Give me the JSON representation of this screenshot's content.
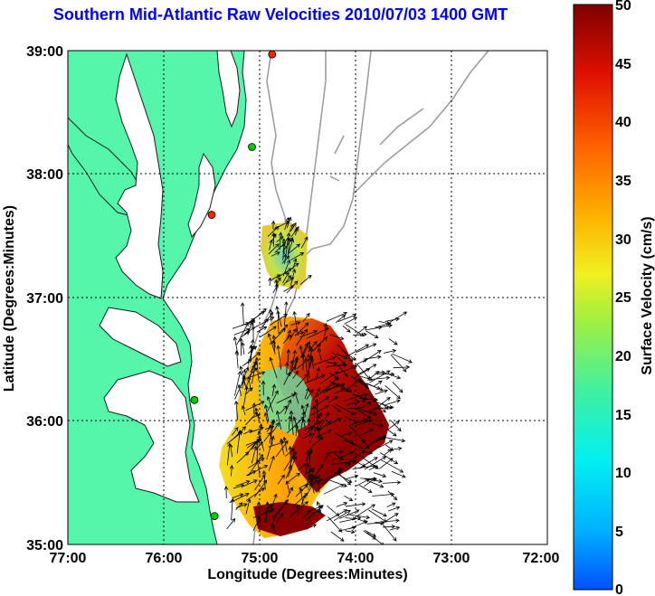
{
  "title": "Southern Mid-Atlantic Raw Velocities 2010/07/03 1400 GMT",
  "axes": {
    "xlabel": "Longitude (Degrees:Minutes)",
    "ylabel": "Latitude (Degrees:Minutes)",
    "x_ticks": [
      "77:00",
      "76:00",
      "75:00",
      "74:00",
      "73:00",
      "72:00"
    ],
    "y_ticks": [
      "39:00",
      "38:00",
      "37:00",
      "36:00",
      "35:00"
    ]
  },
  "colorbar": {
    "label": "Surface Velocity (cm/s)",
    "ticks": [
      "50",
      "45",
      "40",
      "35",
      "30",
      "25",
      "20",
      "15",
      "10",
      "5",
      "0"
    ],
    "range": [
      0,
      50
    ],
    "units": "cm/s"
  },
  "colors": {
    "land": "#55f5aa",
    "title": "#0000ff",
    "isobath": "#999999",
    "station_active": "#00cc00",
    "station_alert": "#ff2200"
  },
  "stations": [
    {
      "lon": -74.87,
      "lat": 38.97,
      "status": "alert"
    },
    {
      "lon": -75.08,
      "lat": 38.22,
      "status": "active"
    },
    {
      "lon": -75.5,
      "lat": 37.67,
      "status": "alert"
    },
    {
      "lon": -75.68,
      "lat": 36.17,
      "status": "active"
    },
    {
      "lon": -75.47,
      "lat": 35.23,
      "status": "active"
    }
  ],
  "grid": "on"
}
